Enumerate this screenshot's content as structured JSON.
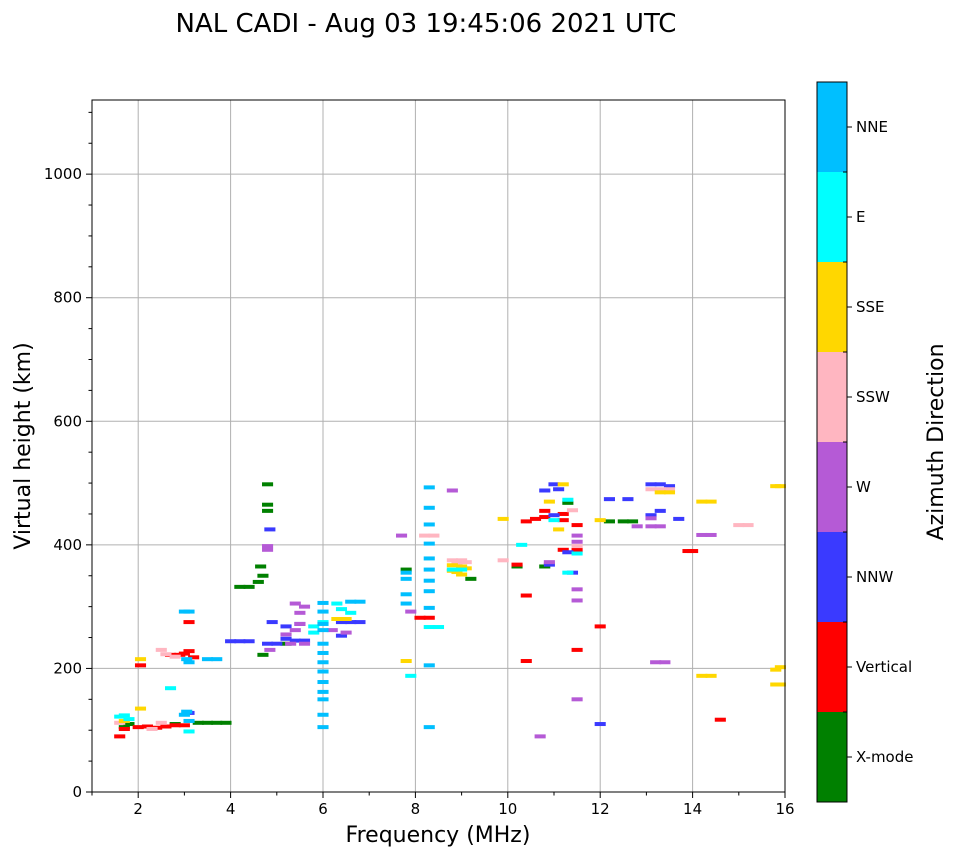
{
  "chart_data": {
    "type": "scatter",
    "title": "NAL CADI - Aug 03 19:45:06 2021 UTC",
    "xlabel": "Frequency (MHz)",
    "ylabel": "Virtual height (km)",
    "xlim": [
      1,
      16
    ],
    "ylim": [
      0,
      1120
    ],
    "xticks": [
      "2",
      "4",
      "6",
      "8",
      "10",
      "12",
      "14",
      "16"
    ],
    "yticks": [
      "0",
      "200",
      "400",
      "600",
      "800",
      "1000"
    ],
    "grid": true,
    "colorbar": {
      "label": "Azimuth Direction",
      "categories": [
        {
          "name": "X-mode",
          "color": "#008000"
        },
        {
          "name": "Vertical",
          "color": "#ff0000"
        },
        {
          "name": "NNW",
          "color": "#3a3aff"
        },
        {
          "name": "W",
          "color": "#b55ad6"
        },
        {
          "name": "SSW",
          "color": "#ffb6c1"
        },
        {
          "name": "SSE",
          "color": "#ffd700"
        },
        {
          "name": "E",
          "color": "#00ffff"
        },
        {
          "name": "NNE",
          "color": "#00bfff"
        }
      ]
    },
    "series": [
      {
        "name": "X-mode",
        "points": [
          [
            1.7,
            105
          ],
          [
            1.8,
            110
          ],
          [
            2.8,
            110
          ],
          [
            3.3,
            112
          ],
          [
            3.5,
            112
          ],
          [
            3.7,
            112
          ],
          [
            3.9,
            112
          ],
          [
            4.2,
            332
          ],
          [
            4.4,
            332
          ],
          [
            4.6,
            340
          ],
          [
            4.7,
            350
          ],
          [
            4.65,
            365
          ],
          [
            4.8,
            455
          ],
          [
            4.8,
            465
          ],
          [
            4.8,
            498
          ],
          [
            4.7,
            222
          ],
          [
            5.2,
            240
          ],
          [
            7.8,
            360
          ],
          [
            9.2,
            345
          ],
          [
            10.2,
            365
          ],
          [
            10.8,
            365
          ],
          [
            12.2,
            438
          ],
          [
            12.5,
            438
          ],
          [
            12.7,
            438
          ],
          [
            11.3,
            468
          ]
        ]
      },
      {
        "name": "Vertical",
        "points": [
          [
            1.6,
            90
          ],
          [
            1.7,
            102
          ],
          [
            2.0,
            105
          ],
          [
            2.2,
            106
          ],
          [
            2.4,
            104
          ],
          [
            2.6,
            106
          ],
          [
            2.8,
            108
          ],
          [
            3.0,
            108
          ],
          [
            2.05,
            205
          ],
          [
            2.7,
            222
          ],
          [
            2.9,
            222
          ],
          [
            3.0,
            224
          ],
          [
            3.1,
            228
          ],
          [
            3.1,
            275
          ],
          [
            3.2,
            218
          ],
          [
            8.3,
            282
          ],
          [
            8.1,
            282
          ],
          [
            10.4,
            212
          ],
          [
            10.4,
            318
          ],
          [
            10.4,
            438
          ],
          [
            10.6,
            442
          ],
          [
            10.8,
            445
          ],
          [
            10.8,
            455
          ],
          [
            11.2,
            440
          ],
          [
            11.2,
            450
          ],
          [
            11.5,
            432
          ],
          [
            11.2,
            392
          ],
          [
            11.5,
            392
          ],
          [
            11.5,
            230
          ],
          [
            12.0,
            268
          ],
          [
            13.9,
            390
          ],
          [
            14.0,
            390
          ],
          [
            14.6,
            117
          ],
          [
            10.2,
            368
          ]
        ]
      },
      {
        "name": "NNW",
        "points": [
          [
            4.0,
            244
          ],
          [
            4.2,
            244
          ],
          [
            4.4,
            244
          ],
          [
            4.8,
            240
          ],
          [
            5.0,
            240
          ],
          [
            5.2,
            248
          ],
          [
            5.4,
            245
          ],
          [
            5.6,
            245
          ],
          [
            5.2,
            268
          ],
          [
            5.5,
            272
          ],
          [
            4.9,
            275
          ],
          [
            6.4,
            275
          ],
          [
            6.6,
            275
          ],
          [
            6.8,
            275
          ],
          [
            6.4,
            253
          ],
          [
            3.1,
            128
          ],
          [
            4.85,
            425
          ],
          [
            11.0,
            498
          ],
          [
            10.8,
            488
          ],
          [
            11.1,
            490
          ],
          [
            10.9,
            368
          ],
          [
            11.3,
            388
          ],
          [
            11.0,
            448
          ],
          [
            12.0,
            110
          ],
          [
            13.1,
            448
          ],
          [
            13.3,
            455
          ],
          [
            13.1,
            498
          ],
          [
            13.3,
            498
          ],
          [
            13.5,
            495
          ],
          [
            13.7,
            442
          ],
          [
            12.2,
            474
          ],
          [
            12.6,
            474
          ],
          [
            11.4,
            355
          ]
        ]
      },
      {
        "name": "W",
        "points": [
          [
            4.8,
            392
          ],
          [
            4.8,
            398
          ],
          [
            5.2,
            255
          ],
          [
            5.4,
            262
          ],
          [
            5.5,
            272
          ],
          [
            5.6,
            300
          ],
          [
            5.4,
            305
          ],
          [
            5.5,
            290
          ],
          [
            5.3,
            240
          ],
          [
            5.6,
            240
          ],
          [
            6.5,
            258
          ],
          [
            6.2,
            262
          ],
          [
            7.9,
            292
          ],
          [
            8.8,
            488
          ],
          [
            7.7,
            415
          ],
          [
            10.7,
            90
          ],
          [
            13.2,
            210
          ],
          [
            13.4,
            210
          ],
          [
            11.5,
            150
          ],
          [
            11.5,
            310
          ],
          [
            11.5,
            328
          ],
          [
            12.8,
            430
          ],
          [
            13.1,
            430
          ],
          [
            13.3,
            430
          ],
          [
            13.1,
            443
          ],
          [
            14.2,
            416
          ],
          [
            14.4,
            416
          ],
          [
            11.5,
            405
          ],
          [
            11.5,
            415
          ],
          [
            10.9,
            372
          ],
          [
            4.85,
            230
          ]
        ]
      },
      {
        "name": "SSW",
        "points": [
          [
            1.6,
            112
          ],
          [
            2.3,
            102
          ],
          [
            2.5,
            112
          ],
          [
            2.6,
            223
          ],
          [
            2.8,
            219
          ],
          [
            2.5,
            230
          ],
          [
            8.4,
            415
          ],
          [
            8.2,
            415
          ],
          [
            8.8,
            375
          ],
          [
            8.9,
            370
          ],
          [
            9.0,
            375
          ],
          [
            9.1,
            372
          ],
          [
            11.4,
            456
          ],
          [
            11.5,
            398
          ],
          [
            15.0,
            432
          ],
          [
            15.2,
            432
          ],
          [
            13.1,
            490
          ],
          [
            13.3,
            490
          ],
          [
            13.5,
            490
          ],
          [
            9.9,
            375
          ]
        ]
      },
      {
        "name": "SSE",
        "points": [
          [
            1.7,
            115
          ],
          [
            2.05,
            135
          ],
          [
            2.05,
            215
          ],
          [
            6.3,
            280
          ],
          [
            6.5,
            280
          ],
          [
            8.8,
            358
          ],
          [
            8.9,
            356
          ],
          [
            9.0,
            352
          ],
          [
            8.8,
            367
          ],
          [
            9.0,
            365
          ],
          [
            9.1,
            362
          ],
          [
            9.9,
            442
          ],
          [
            11.2,
            498
          ],
          [
            11.1,
            425
          ],
          [
            12.0,
            440
          ],
          [
            13.3,
            485
          ],
          [
            13.5,
            485
          ],
          [
            14.2,
            470
          ],
          [
            14.4,
            470
          ],
          [
            14.2,
            188
          ],
          [
            14.4,
            188
          ],
          [
            15.8,
            495
          ],
          [
            15.9,
            495
          ],
          [
            15.8,
            174
          ],
          [
            15.9,
            174
          ],
          [
            15.8,
            198
          ],
          [
            15.9,
            202
          ],
          [
            7.8,
            212
          ],
          [
            10.9,
            470
          ]
        ]
      },
      {
        "name": "E",
        "points": [
          [
            1.6,
            122
          ],
          [
            1.7,
            124
          ],
          [
            1.8,
            118
          ],
          [
            2.7,
            168
          ],
          [
            3.1,
            98
          ],
          [
            6.4,
            296
          ],
          [
            6.6,
            290
          ],
          [
            6.3,
            305
          ],
          [
            8.3,
            267
          ],
          [
            8.5,
            267
          ],
          [
            8.8,
            360
          ],
          [
            9.0,
            360
          ],
          [
            7.9,
            188
          ],
          [
            10.3,
            400
          ],
          [
            11.3,
            355
          ],
          [
            11.5,
            386
          ],
          [
            11.3,
            473
          ],
          [
            11.0,
            440
          ],
          [
            5.8,
            258
          ],
          [
            5.8,
            268
          ],
          [
            6.0,
            275
          ]
        ]
      },
      {
        "name": "NNE",
        "points": [
          [
            3.0,
            125
          ],
          [
            3.05,
            130
          ],
          [
            3.1,
            115
          ],
          [
            3.1,
            210
          ],
          [
            3.05,
            215
          ],
          [
            3.1,
            292
          ],
          [
            3.0,
            292
          ],
          [
            3.5,
            215
          ],
          [
            3.7,
            215
          ],
          [
            6.0,
            105
          ],
          [
            6.0,
            125
          ],
          [
            6.0,
            150
          ],
          [
            6.0,
            162
          ],
          [
            6.0,
            178
          ],
          [
            6.0,
            195
          ],
          [
            6.0,
            210
          ],
          [
            6.0,
            225
          ],
          [
            6.0,
            240
          ],
          [
            6.0,
            262
          ],
          [
            6.0,
            272
          ],
          [
            6.0,
            292
          ],
          [
            6.0,
            306
          ],
          [
            6.8,
            308
          ],
          [
            6.6,
            308
          ],
          [
            8.3,
            105
          ],
          [
            8.3,
            205
          ],
          [
            8.3,
            298
          ],
          [
            8.3,
            325
          ],
          [
            8.3,
            342
          ],
          [
            8.3,
            360
          ],
          [
            8.3,
            378
          ],
          [
            8.3,
            402
          ],
          [
            8.3,
            433
          ],
          [
            8.3,
            460
          ],
          [
            8.3,
            493
          ],
          [
            7.8,
            305
          ],
          [
            7.8,
            320
          ],
          [
            7.8,
            345
          ],
          [
            7.8,
            355
          ]
        ]
      }
    ]
  }
}
